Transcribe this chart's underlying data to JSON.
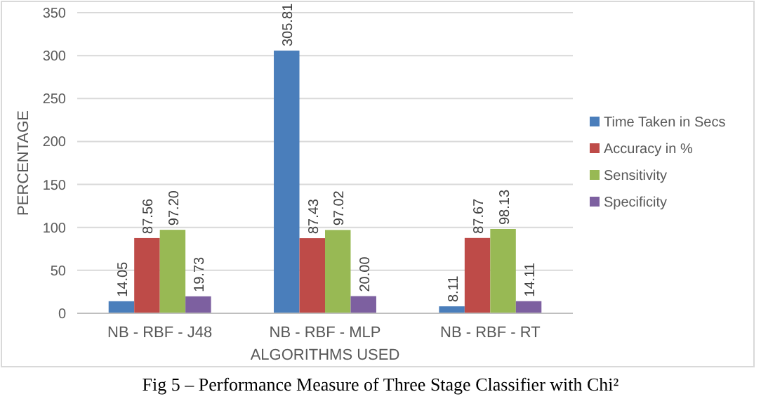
{
  "chart_data": {
    "type": "bar",
    "xlabel": "ALGORITHMS USED",
    "ylabel": "PERCENTAGE",
    "categories": [
      "NB - RBF - J48",
      "NB - RBF - MLP",
      "NB - RBF - RT"
    ],
    "series": [
      {
        "name": "Time Taken in Secs",
        "color": "#4a7ebb",
        "values": [
          14.05,
          305.81,
          8.11
        ]
      },
      {
        "name": "Accuracy in %",
        "color": "#be4b48",
        "values": [
          87.56,
          87.43,
          87.67
        ]
      },
      {
        "name": "Sensitivity",
        "color": "#98b954",
        "values": [
          97.2,
          97.02,
          98.13
        ]
      },
      {
        "name": "Specificity",
        "color": "#7d60a0",
        "values": [
          19.73,
          20.0,
          14.11
        ]
      }
    ],
    "value_labels": [
      [
        "14.05",
        "305.81",
        "8.11"
      ],
      [
        "87.56",
        "87.43",
        "87.67"
      ],
      [
        "97.20",
        "97.02",
        "98.13"
      ],
      [
        "19.73",
        "20.00",
        "14.11"
      ]
    ],
    "ylim": [
      0,
      350
    ],
    "yticks": [
      0,
      50,
      100,
      150,
      200,
      250,
      300,
      350
    ],
    "grid": "y",
    "legend": "right",
    "annotations": [
      "Fig 5 – Performance Measure of Three Stage Classifier with Chi²"
    ]
  }
}
